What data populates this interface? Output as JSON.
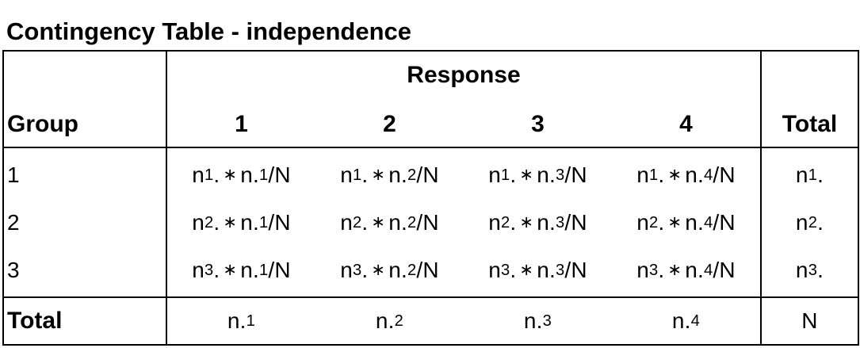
{
  "title": "Contingency Table - independence",
  "header": {
    "group_label": "Group",
    "response_label": "Response",
    "columns": [
      "1",
      "2",
      "3",
      "4"
    ],
    "total_label": "Total"
  },
  "rows": [
    {
      "label": "1",
      "cells": [
        {
          "a": "n",
          "a_sub": "1",
          "a_suffix": ".",
          "op": "∗",
          "b": "n.",
          "b_sub": "1",
          "tail": "/N"
        },
        {
          "a": "n",
          "a_sub": "1",
          "a_suffix": ".",
          "op": "∗",
          "b": "n.",
          "b_sub": "2",
          "tail": "/N"
        },
        {
          "a": "n",
          "a_sub": "1",
          "a_suffix": ".",
          "op": "∗",
          "b": "n.",
          "b_sub": "3",
          "tail": "/N"
        },
        {
          "a": "n",
          "a_sub": "1",
          "a_suffix": ".",
          "op": "∗",
          "b": "n.",
          "b_sub": "4",
          "tail": "/N"
        }
      ],
      "total": {
        "a": "n",
        "a_sub": "1",
        "a_suffix": "."
      }
    },
    {
      "label": "2",
      "cells": [
        {
          "a": "n",
          "a_sub": "2",
          "a_suffix": ".",
          "op": "∗",
          "b": "n.",
          "b_sub": "1",
          "tail": "/N"
        },
        {
          "a": "n",
          "a_sub": "2",
          "a_suffix": ".",
          "op": "∗",
          "b": "n.",
          "b_sub": "2",
          "tail": "/N"
        },
        {
          "a": "n",
          "a_sub": "2",
          "a_suffix": ".",
          "op": "∗",
          "b": "n.",
          "b_sub": "3",
          "tail": "/N"
        },
        {
          "a": "n",
          "a_sub": "2",
          "a_suffix": ".",
          "op": "∗",
          "b": "n.",
          "b_sub": "4",
          "tail": "/N"
        }
      ],
      "total": {
        "a": "n",
        "a_sub": "2",
        "a_suffix": "."
      }
    },
    {
      "label": "3",
      "cells": [
        {
          "a": "n",
          "a_sub": "3",
          "a_suffix": ".",
          "op": "∗",
          "b": "n.",
          "b_sub": "1",
          "tail": "/N"
        },
        {
          "a": "n",
          "a_sub": "3",
          "a_suffix": ".",
          "op": "∗",
          "b": "n.",
          "b_sub": "2",
          "tail": "/N"
        },
        {
          "a": "n",
          "a_sub": "3",
          "a_suffix": ".",
          "op": "∗",
          "b": "n.",
          "b_sub": "3",
          "tail": "/N"
        },
        {
          "a": "n",
          "a_sub": "3",
          "a_suffix": ".",
          "op": "∗",
          "b": "n.",
          "b_sub": "4",
          "tail": "/N"
        }
      ],
      "total": {
        "a": "n",
        "a_sub": "3",
        "a_suffix": "."
      }
    }
  ],
  "totals_row": {
    "label": "Total",
    "cells": [
      {
        "a": "n.",
        "a_sub": "1"
      },
      {
        "a": "n.",
        "a_sub": "2"
      },
      {
        "a": "n.",
        "a_sub": "3"
      },
      {
        "a": "n.",
        "a_sub": "4"
      }
    ],
    "grand_total": "N"
  }
}
